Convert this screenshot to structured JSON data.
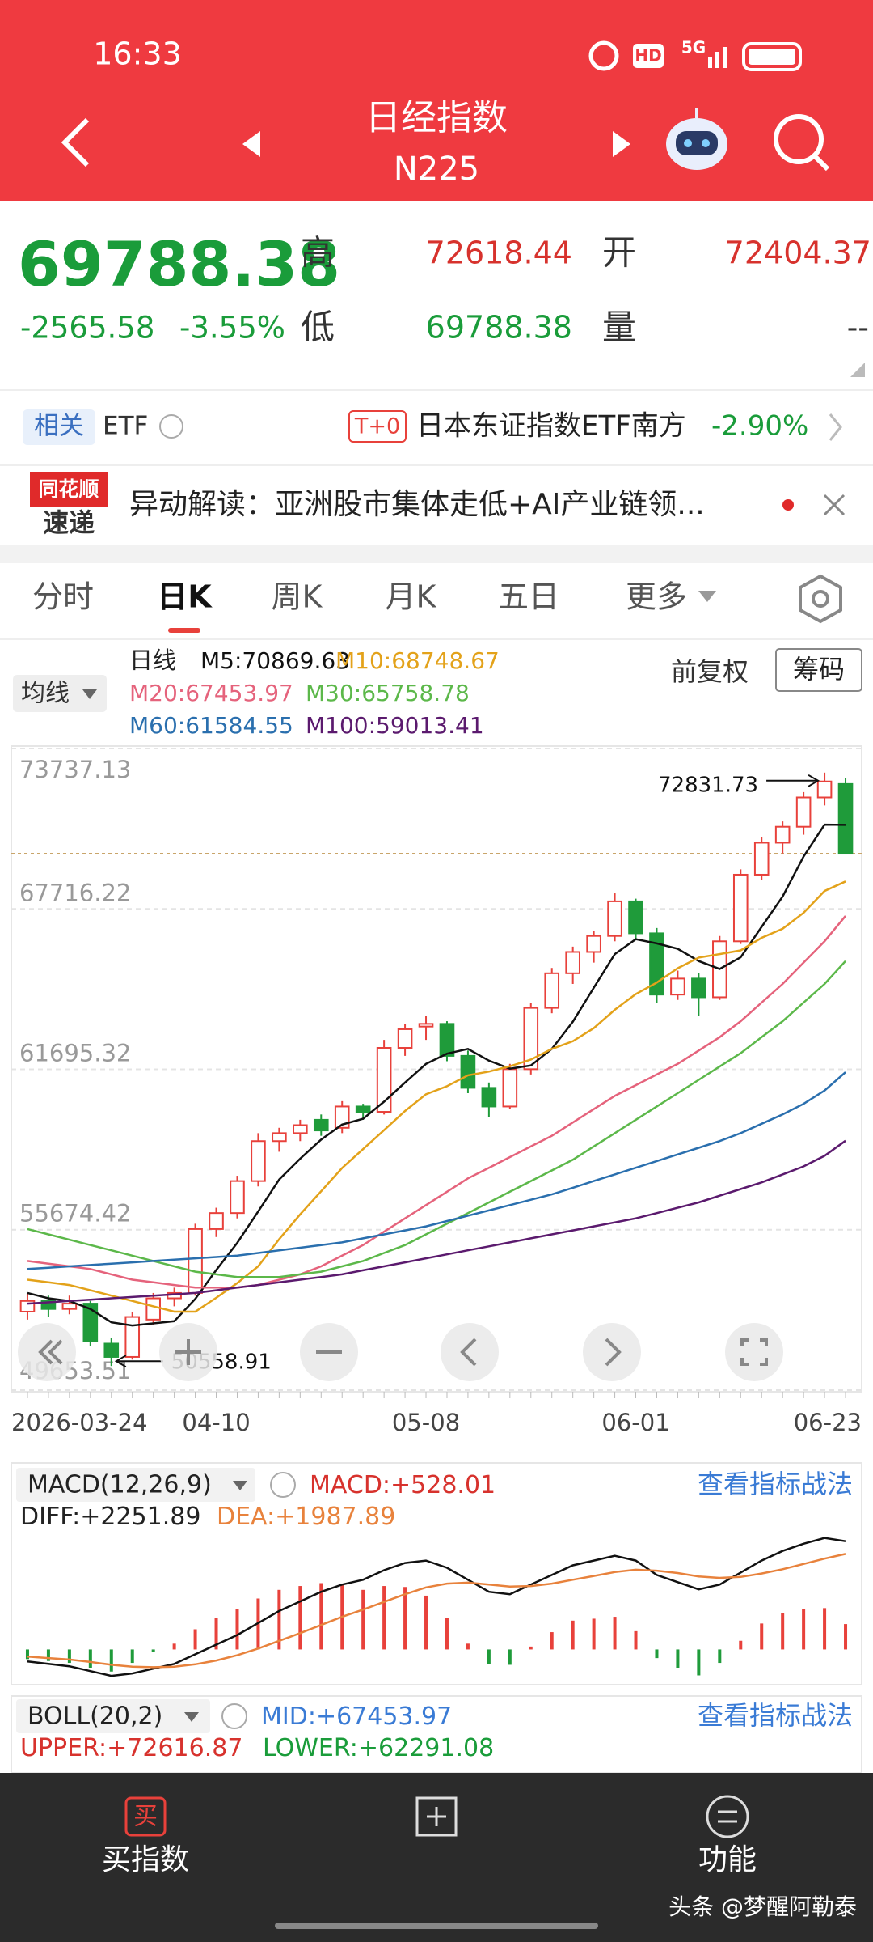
{
  "status_bar": {
    "time": "16:33",
    "hd": "HD",
    "network": "5G"
  },
  "header": {
    "title": "日经指数",
    "code": "N225"
  },
  "quote": {
    "price": 69788.38,
    "change": -2565.58,
    "change_pct": {
      "value": -3.55,
      "label": "-3.55%"
    },
    "high_label": "高",
    "high": 72618.44,
    "open_label": "开",
    "open": 72404.37,
    "low_label": "低",
    "low": 69788.38,
    "volume_label": "量",
    "volume": "--"
  },
  "etf": {
    "tag": "相关",
    "label": "ETF",
    "t0": "T+0",
    "name": "日本东证指数ETF南方",
    "change": {
      "value": -2.9,
      "label": "-2.90%"
    }
  },
  "news": {
    "logo_top": "同花顺",
    "logo_bottom": "速递",
    "text": "异动解读：亚洲股市集体走低+AI产业链领..."
  },
  "tabs": [
    "分时",
    "日K",
    "周K",
    "月K",
    "五日",
    "更多"
  ],
  "ma_selector": "均线",
  "period_label": "日线",
  "adjust": "前复权",
  "chips": "筹码",
  "kline": {
    "type": "candlestick",
    "ylim": [
      49653.51,
      73737.13
    ],
    "yticks": [
      73737.13,
      67716.22,
      61695.32,
      55674.42,
      49653.51
    ],
    "grid": true,
    "up_color": "#e8413b",
    "down_color": "#1f9b3a",
    "categories": [
      "2026-03-24",
      null,
      null,
      null,
      null,
      null,
      null,
      null,
      null,
      "04-10",
      null,
      null,
      null,
      null,
      null,
      null,
      null,
      null,
      null,
      "05-08",
      null,
      null,
      null,
      null,
      null,
      null,
      null,
      null,
      null,
      "06-01",
      null,
      null,
      null,
      null,
      null,
      null,
      null,
      null,
      null,
      "06-23"
    ],
    "candles": [
      [
        52600,
        53300,
        52300,
        53000
      ],
      [
        53000,
        53200,
        52400,
        52700
      ],
      [
        52700,
        53200,
        52500,
        52900
      ],
      [
        52900,
        53000,
        51300,
        51500
      ],
      [
        51400,
        51600,
        50558.91,
        50900
      ],
      [
        50900,
        52600,
        50800,
        52400
      ],
      [
        52300,
        53300,
        52100,
        53100
      ],
      [
        53100,
        53500,
        52800,
        53300
      ],
      [
        53300,
        55900,
        53200,
        55700
      ],
      [
        55700,
        56500,
        55400,
        56300
      ],
      [
        56300,
        57700,
        56100,
        57500
      ],
      [
        57500,
        59300,
        57300,
        59000
      ],
      [
        59000,
        59500,
        58600,
        59300
      ],
      [
        59300,
        59800,
        59000,
        59600
      ],
      [
        59800,
        60000,
        59200,
        59400
      ],
      [
        59500,
        60500,
        59300,
        60300
      ],
      [
        60300,
        60400,
        59800,
        60100
      ],
      [
        60100,
        62800,
        60000,
        62500
      ],
      [
        62500,
        63400,
        62200,
        63200
      ],
      [
        63300,
        63700,
        62800,
        63400
      ],
      [
        63400,
        63500,
        62000,
        62200
      ],
      [
        62200,
        62400,
        60800,
        61000
      ],
      [
        61000,
        61200,
        59900,
        60300
      ],
      [
        60300,
        61900,
        60200,
        61700
      ],
      [
        61700,
        64200,
        61500,
        64000
      ],
      [
        64000,
        65500,
        63800,
        65300
      ],
      [
        65300,
        66300,
        64900,
        66100
      ],
      [
        66100,
        66900,
        65700,
        66700
      ],
      [
        66700,
        68300,
        66500,
        68000
      ],
      [
        68000,
        68100,
        66600,
        66800
      ],
      [
        66800,
        67000,
        64200,
        64500
      ],
      [
        64500,
        65400,
        64300,
        65100
      ],
      [
        65100,
        65300,
        63700,
        64400
      ],
      [
        64400,
        66700,
        64300,
        66500
      ],
      [
        66500,
        69200,
        66400,
        69000
      ],
      [
        69000,
        70400,
        68800,
        70200
      ],
      [
        70200,
        71000,
        69800,
        70800
      ],
      [
        70800,
        72100,
        70500,
        71900
      ],
      [
        71900,
        72831.73,
        71600,
        72500
      ],
      [
        72404.37,
        72618.44,
        69788.38,
        69788.38
      ]
    ],
    "ma": [
      {
        "name": "M5:",
        "color": "#111111",
        "values": [
          53300,
          53100,
          53000,
          52700,
          52200,
          52080,
          52160,
          52240,
          53080,
          54160,
          55180,
          56360,
          57560,
          58340,
          59060,
          59620,
          59840,
          60480,
          61200,
          61900,
          62280,
          62460,
          62020,
          61720,
          61840,
          62460,
          63480,
          64760,
          66020,
          66580,
          66420,
          66220,
          65760,
          65460,
          65900,
          67040,
          68180,
          69680,
          70880,
          70869.63
        ]
      },
      {
        "name": "M10:",
        "color": "#e3a21a",
        "values": [
          53800,
          53700,
          53600,
          53400,
          53200,
          53000,
          52800,
          52600,
          52600,
          53120,
          53670,
          54300,
          55320,
          56250,
          57120,
          57990,
          58700,
          59410,
          60130,
          60760,
          61060,
          61470,
          61610,
          61810,
          62060,
          62460,
          62750,
          63240,
          63930,
          64520,
          64950,
          65490,
          65890,
          66020,
          66160,
          66630,
          66970,
          67570,
          68390,
          68748.67
        ]
      },
      {
        "name": "M20:",
        "color": "#e5637c",
        "values": [
          54500,
          54400,
          54300,
          54200,
          54000,
          53800,
          53700,
          53600,
          53500,
          53500,
          53500,
          53600,
          53800,
          54000,
          54300,
          54700,
          55100,
          55600,
          56100,
          56600,
          57100,
          57600,
          58000,
          58400,
          58800,
          59200,
          59700,
          60200,
          60700,
          61100,
          61500,
          61900,
          62400,
          62900,
          63500,
          64200,
          64900,
          65700,
          66500,
          67453.97
        ]
      },
      {
        "name": "M30:",
        "color": "#5cb84a",
        "values": [
          55700,
          55500,
          55300,
          55100,
          54900,
          54700,
          54500,
          54300,
          54100,
          54000,
          53900,
          53900,
          53900,
          54000,
          54100,
          54300,
          54500,
          54800,
          55100,
          55500,
          55900,
          56300,
          56700,
          57100,
          57500,
          57900,
          58300,
          58800,
          59300,
          59800,
          60300,
          60800,
          61300,
          61800,
          62300,
          62900,
          63500,
          64200,
          64900,
          65758.78
        ]
      },
      {
        "name": "M60:",
        "color": "#2a6fae",
        "values": [
          54200,
          54250,
          54300,
          54350,
          54400,
          54450,
          54500,
          54550,
          54600,
          54650,
          54700,
          54800,
          54900,
          55000,
          55100,
          55200,
          55350,
          55500,
          55650,
          55800,
          56000,
          56200,
          56400,
          56600,
          56800,
          57000,
          57250,
          57500,
          57750,
          58000,
          58250,
          58500,
          58750,
          59000,
          59300,
          59650,
          60000,
          60400,
          60900,
          61584.55
        ]
      },
      {
        "name": "M100:",
        "color": "#5b1a6e",
        "values": [
          52900,
          52950,
          53000,
          53050,
          53100,
          53150,
          53200,
          53250,
          53300,
          53400,
          53500,
          53600,
          53700,
          53800,
          53900,
          54000,
          54150,
          54300,
          54450,
          54600,
          54750,
          54900,
          55050,
          55200,
          55350,
          55500,
          55650,
          55800,
          55950,
          56100,
          56300,
          56500,
          56700,
          56950,
          57200,
          57450,
          57750,
          58050,
          58450,
          59013.41
        ]
      }
    ]
  },
  "macd": {
    "name": "MACD(12,26,9)",
    "macd_prefix": "MACD:+",
    "diff_prefix": "DIFF:+",
    "dea_prefix": "DEA:+",
    "link": "查看指标战法",
    "ylim": [
      -700,
      2500
    ],
    "up_color": "#e8413b",
    "down_color": "#1f9b3a",
    "hist": [
      -200,
      -240,
      -280,
      -380,
      -460,
      -280,
      -60,
      120,
      420,
      660,
      840,
      1060,
      1240,
      1320,
      1380,
      1340,
      1240,
      1320,
      1300,
      1120,
      660,
      120,
      -300,
      -320,
      60,
      360,
      600,
      640,
      680,
      380,
      -180,
      -380,
      -540,
      -280,
      180,
      540,
      760,
      840,
      860,
      528.01
    ],
    "diff": {
      "color": "#111111",
      "values": [
        -250,
        -300,
        -350,
        -450,
        -550,
        -500,
        -400,
        -300,
        -100,
        100,
        300,
        550,
        800,
        1000,
        1200,
        1350,
        1450,
        1650,
        1800,
        1850,
        1700,
        1450,
        1200,
        1150,
        1350,
        1550,
        1750,
        1850,
        1950,
        1850,
        1550,
        1400,
        1250,
        1350,
        1600,
        1850,
        2050,
        2200,
        2320,
        2251.89
      ]
    },
    "dea": {
      "color": "#e8823c",
      "values": [
        -150,
        -180,
        -210,
        -260,
        -320,
        -360,
        -370,
        -360,
        -310,
        -230,
        -120,
        20,
        180,
        340,
        510,
        680,
        830,
        990,
        1150,
        1290,
        1370,
        1390,
        1350,
        1310,
        1320,
        1370,
        1450,
        1530,
        1610,
        1660,
        1640,
        1590,
        1520,
        1490,
        1510,
        1580,
        1670,
        1780,
        1890,
        1987.89
      ]
    }
  },
  "boll": {
    "name": "BOLL(20,2)",
    "mid_prefix": "MID:+",
    "mid": 67453.97,
    "upper_prefix": "UPPER:+",
    "upper": 72616.87,
    "lower_prefix": "LOWER:+",
    "lower": 62291.08,
    "link": "查看指标战法"
  },
  "bottom_nav": {
    "buy_icon": "买",
    "buy": "买指数",
    "func": "功能"
  },
  "watermark": "头条 @梦醒阿勒泰"
}
